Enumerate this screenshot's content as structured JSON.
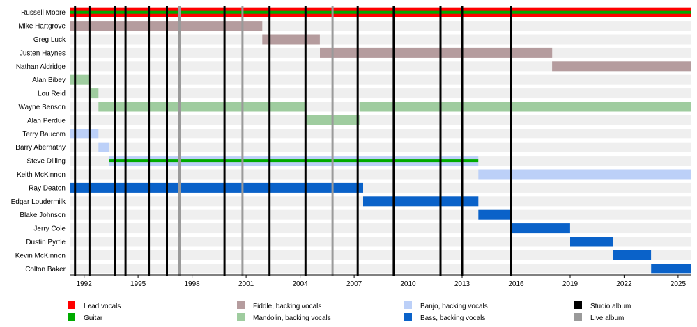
{
  "chart_data": {
    "type": "timeline",
    "title": "",
    "xlabel": "",
    "ylabel": "",
    "x_range": [
      1991.2,
      2025.7
    ],
    "x_ticks": [
      1992,
      1995,
      1998,
      2001,
      2004,
      2007,
      2010,
      2013,
      2016,
      2019,
      2022,
      2025
    ],
    "roles": [
      {
        "key": "lead",
        "label": "Lead vocals",
        "color": "#ff0000"
      },
      {
        "key": "guitar",
        "label": "Guitar",
        "color": "#00aa00"
      },
      {
        "key": "fiddle",
        "label": "Fiddle, backing vocals",
        "color": "#b59c9e"
      },
      {
        "key": "mandolin",
        "label": "Mandolin, backing vocals",
        "color": "#9fcc9f"
      },
      {
        "key": "banjo",
        "label": "Banjo, backing vocals",
        "color": "#bcd0f8"
      },
      {
        "key": "bass",
        "label": "Bass, backing vocals",
        "color": "#0a62c9"
      },
      {
        "key": "studio",
        "label": "Studio album",
        "color": "#000000"
      },
      {
        "key": "live",
        "label": "Live album",
        "color": "#9a9a9a"
      }
    ],
    "members": [
      {
        "name": "Russell Moore",
        "periods": [
          {
            "role": "lead",
            "start": 1991.2,
            "end": 2025.7
          },
          {
            "role": "guitar",
            "start": 1991.2,
            "end": 2025.7
          }
        ]
      },
      {
        "name": "Mike Hartgrove",
        "periods": [
          {
            "role": "fiddle",
            "start": 1991.2,
            "end": 2001.9
          }
        ]
      },
      {
        "name": "Greg Luck",
        "periods": [
          {
            "role": "fiddle",
            "start": 2001.9,
            "end": 2005.1
          }
        ]
      },
      {
        "name": "Justen Haynes",
        "periods": [
          {
            "role": "fiddle",
            "start": 2005.1,
            "end": 2018.0
          }
        ]
      },
      {
        "name": "Nathan Aldridge",
        "periods": [
          {
            "role": "fiddle",
            "start": 2018.0,
            "end": 2025.7
          }
        ]
      },
      {
        "name": "Alan Bibey",
        "periods": [
          {
            "role": "mandolin",
            "start": 1991.2,
            "end": 1992.3
          }
        ]
      },
      {
        "name": "Lou Reid",
        "periods": [
          {
            "role": "mandolin",
            "start": 1992.3,
            "end": 1992.8
          }
        ]
      },
      {
        "name": "Wayne Benson",
        "periods": [
          {
            "role": "mandolin",
            "start": 1992.8,
            "end": 2004.3
          },
          {
            "role": "mandolin",
            "start": 2007.3,
            "end": 2025.7
          }
        ]
      },
      {
        "name": "Alan Perdue",
        "periods": [
          {
            "role": "mandolin",
            "start": 2004.3,
            "end": 2007.3
          }
        ]
      },
      {
        "name": "Terry Baucom",
        "periods": [
          {
            "role": "banjo",
            "start": 1991.2,
            "end": 1992.8
          }
        ]
      },
      {
        "name": "Barry Abernathy",
        "periods": [
          {
            "role": "banjo",
            "start": 1992.8,
            "end": 1993.4
          }
        ]
      },
      {
        "name": "Steve Dilling",
        "periods": [
          {
            "role": "banjo",
            "start": 1993.4,
            "end": 2013.9
          },
          {
            "role": "guitar",
            "start": 1993.4,
            "end": 2013.9
          }
        ]
      },
      {
        "name": "Keith McKinnon",
        "periods": [
          {
            "role": "banjo",
            "start": 2013.9,
            "end": 2025.7
          }
        ]
      },
      {
        "name": "Ray Deaton",
        "periods": [
          {
            "role": "bass",
            "start": 1991.2,
            "end": 2007.5
          }
        ]
      },
      {
        "name": "Edgar Loudermilk",
        "periods": [
          {
            "role": "bass",
            "start": 2007.5,
            "end": 2013.9
          }
        ]
      },
      {
        "name": "Blake Johnson",
        "periods": [
          {
            "role": "bass",
            "start": 2013.9,
            "end": 2015.7
          }
        ]
      },
      {
        "name": "Jerry Cole",
        "periods": [
          {
            "role": "bass",
            "start": 2015.7,
            "end": 2019.0
          }
        ]
      },
      {
        "name": "Dustin Pyrtle",
        "periods": [
          {
            "role": "bass",
            "start": 2019.0,
            "end": 2021.4
          }
        ]
      },
      {
        "name": "Kevin McKinnon",
        "periods": [
          {
            "role": "bass",
            "start": 2021.4,
            "end": 2023.5
          }
        ]
      },
      {
        "name": "Colton Baker",
        "periods": [
          {
            "role": "bass",
            "start": 2023.5,
            "end": 2025.7
          }
        ]
      }
    ],
    "albums": [
      {
        "year": 1991.5,
        "kind": "studio"
      },
      {
        "year": 1992.3,
        "kind": "studio"
      },
      {
        "year": 1993.7,
        "kind": "studio"
      },
      {
        "year": 1994.3,
        "kind": "studio"
      },
      {
        "year": 1995.6,
        "kind": "studio"
      },
      {
        "year": 1996.6,
        "kind": "studio"
      },
      {
        "year": 1997.3,
        "kind": "live"
      },
      {
        "year": 1999.8,
        "kind": "studio"
      },
      {
        "year": 2000.8,
        "kind": "live"
      },
      {
        "year": 2002.3,
        "kind": "studio"
      },
      {
        "year": 2004.3,
        "kind": "studio"
      },
      {
        "year": 2005.8,
        "kind": "live"
      },
      {
        "year": 2007.2,
        "kind": "studio"
      },
      {
        "year": 2009.2,
        "kind": "studio"
      },
      {
        "year": 2011.8,
        "kind": "studio"
      },
      {
        "year": 2013.0,
        "kind": "studio"
      },
      {
        "year": 2015.7,
        "kind": "studio"
      }
    ]
  }
}
